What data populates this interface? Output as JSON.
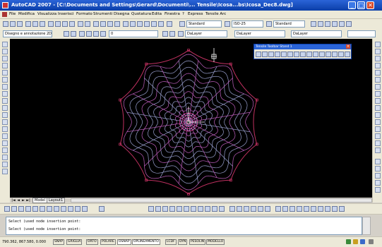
{
  "window": {
    "title": "AutoCAD 2007 - [C:\\Documents and Settings\\Gerard\\Documenti\\... Tensile\\Icosa...bs\\Icosa_Dec8.dwg]",
    "minimize_glyph": "_",
    "maximize_glyph": "□",
    "close_glyph": "✕"
  },
  "menu": {
    "items": [
      "File",
      "Modifica",
      "Visualizza",
      "Inserisci",
      "Formato",
      "Strumenti",
      "Disegna",
      "Quotatura",
      "Edita",
      "Finestra",
      "?",
      "Express",
      "Tensile Arc"
    ]
  },
  "toolbar_row2": {
    "layer_combo": "",
    "style_combo": "ISO-25",
    "standard_combo": "Standard",
    "dim_combo": "ISO-25",
    "text_combo": "Standard"
  },
  "toolbar_row3": {
    "workspace_combo": "Disegno e annotazione 2D",
    "layer_state_combo": "0",
    "color_combo": "DaLayer",
    "linetype_combo": "DaLayer",
    "lineweight_combo": "DaLayer"
  },
  "floating_toolbar": {
    "title": "Tensile Toolbar Stand 1"
  },
  "drawing": {
    "sides": 10,
    "rings": 12,
    "spokes": 20,
    "colors": {
      "mesh": "#9aa0d0",
      "mesh_alt": "#c060c0",
      "outline": "#c03060",
      "center": "#e040a0",
      "axis": "#ffffff"
    }
  },
  "tabs": {
    "nav": [
      "|◄",
      "◄",
      "►",
      "►|"
    ],
    "items": [
      "Model",
      "Layout1"
    ]
  },
  "command": {
    "line1": "Select (used node insertion point:",
    "line2": "Select (used node insertion point:"
  },
  "status": {
    "coords": "790.362, 867.580, 0.000",
    "buttons": [
      "SNAP",
      "GRIGLIA",
      "ORTO",
      "POLARE",
      "OSNAP",
      "OPLINEAMENTO",
      "LCDF",
      "DYN",
      "PESOLIN",
      "MODELLO"
    ]
  }
}
